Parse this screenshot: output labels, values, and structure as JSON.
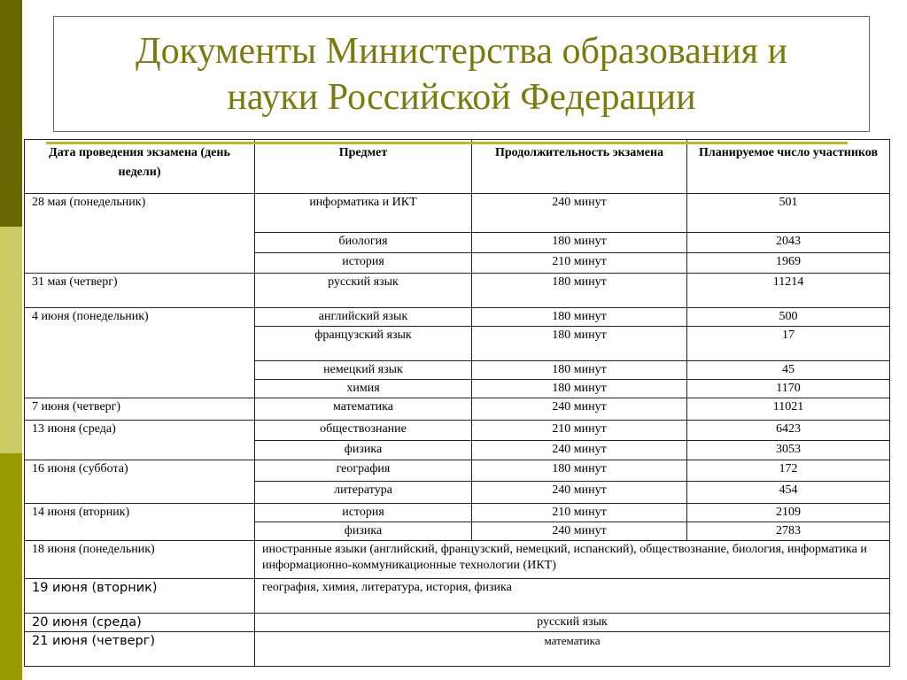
{
  "title": "Документы Министерства образования и\nнауки Российской Федерации",
  "colors": {
    "strip_top": "#666600",
    "strip_mid": "#cccc66",
    "strip_bottom": "#999900",
    "title": "#7a7a10"
  },
  "headers": [
    "Дата проведения экзамена (день недели)",
    "Предмет",
    "Продолжительность экзамена",
    "Планируемое число участников"
  ],
  "groups": [
    {
      "date": "28 мая (понедельник)",
      "rows": [
        [
          "информатика и ИКТ",
          "240 минут",
          "501"
        ],
        [
          "биология",
          "180 минут",
          "2043"
        ],
        [
          "история",
          "210 минут",
          "1969"
        ]
      ]
    },
    {
      "date": "31 мая (четверг)",
      "rows": [
        [
          "русский язык",
          "180 минут",
          "11214"
        ]
      ]
    },
    {
      "date": "4 июня (понедельник)",
      "rows": [
        [
          "английский язык",
          "180 минут",
          "500"
        ],
        [
          "французский язык",
          "180 минут",
          "17"
        ],
        [
          "немецкий язык",
          "180 минут",
          "45"
        ],
        [
          "химия",
          "180 минут",
          "1170"
        ]
      ]
    },
    {
      "date": "7 июня (четверг)",
      "rows": [
        [
          "математика",
          "240 минут",
          "11021"
        ]
      ]
    },
    {
      "date": "13 июня (среда)",
      "rows": [
        [
          "обществознание",
          "210 минут",
          "6423"
        ],
        [
          "физика",
          "240 минут",
          "3053"
        ]
      ]
    },
    {
      "date": "16 июня (суббота)",
      "rows": [
        [
          "география",
          "180 минут",
          "172"
        ],
        [
          "литература",
          "240 минут",
          "454"
        ]
      ]
    },
    {
      "date": "14 июня (вторник)",
      "rows": [
        [
          "история",
          "210 минут",
          "2109"
        ],
        [
          "физика",
          "240 минут",
          "2783"
        ]
      ]
    }
  ],
  "reserve": [
    {
      "date": "18 июня (понедельник)",
      "subjects": "иностранные языки (английский, французский, немецкий, испанский), обществознание, биология, информатика и информационно-коммуникационные технологии (ИКТ)"
    },
    {
      "date": "19 июня (вторник)",
      "subjects": "география, химия, литература, история, физика"
    },
    {
      "date": "20 июня (среда)",
      "subjects": "русский язык"
    },
    {
      "date": "21 июня (четверг)",
      "subjects": "математика"
    }
  ]
}
